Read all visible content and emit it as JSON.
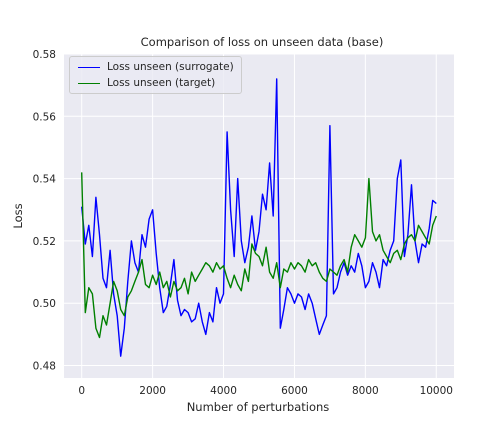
{
  "chart_data": {
    "type": "line",
    "title": "Comparison of loss on unseen data (base)",
    "xlabel": "Number of perturbations",
    "ylabel": "Loss",
    "xlim": [
      -500,
      10500
    ],
    "ylim": [
      0.476,
      0.58
    ],
    "xticks": [
      0,
      2000,
      4000,
      6000,
      8000,
      10000
    ],
    "yticks": [
      0.48,
      0.5,
      0.52,
      0.54,
      0.56,
      0.58
    ],
    "ytick_labels": [
      "0.48",
      "0.50",
      "0.52",
      "0.54",
      "0.56",
      "0.58"
    ],
    "grid": true,
    "legend_position": "upper-left",
    "colors": {
      "background": "#eaeaf2",
      "grid": "#ffffff"
    },
    "series": [
      {
        "name": "Loss unseen (surrogate)",
        "color": "#0000ff",
        "x": [
          0,
          100,
          200,
          300,
          400,
          500,
          600,
          700,
          800,
          900,
          1000,
          1100,
          1200,
          1300,
          1400,
          1500,
          1600,
          1700,
          1800,
          1900,
          2000,
          2100,
          2200,
          2300,
          2400,
          2500,
          2600,
          2700,
          2800,
          2900,
          3000,
          3100,
          3200,
          3300,
          3400,
          3500,
          3600,
          3700,
          3800,
          3900,
          4000,
          4100,
          4200,
          4300,
          4400,
          4500,
          4600,
          4700,
          4800,
          4900,
          5000,
          5100,
          5200,
          5300,
          5400,
          5500,
          5600,
          5700,
          5800,
          5900,
          6000,
          6100,
          6200,
          6300,
          6400,
          6500,
          6600,
          6700,
          6800,
          6900,
          7000,
          7100,
          7200,
          7300,
          7400,
          7500,
          7600,
          7700,
          7800,
          7900,
          8000,
          8100,
          8200,
          8300,
          8400,
          8500,
          8600,
          8700,
          8800,
          8900,
          9000,
          9100,
          9200,
          9300,
          9400,
          9500,
          9600,
          9700,
          9800,
          9900,
          10000
        ],
        "y": [
          0.531,
          0.519,
          0.525,
          0.515,
          0.534,
          0.522,
          0.508,
          0.505,
          0.517,
          0.503,
          0.496,
          0.483,
          0.492,
          0.507,
          0.52,
          0.513,
          0.51,
          0.522,
          0.518,
          0.527,
          0.53,
          0.516,
          0.505,
          0.497,
          0.499,
          0.506,
          0.514,
          0.501,
          0.496,
          0.498,
          0.497,
          0.494,
          0.495,
          0.5,
          0.494,
          0.49,
          0.497,
          0.494,
          0.505,
          0.5,
          0.503,
          0.555,
          0.53,
          0.515,
          0.54,
          0.52,
          0.513,
          0.518,
          0.528,
          0.517,
          0.523,
          0.535,
          0.53,
          0.545,
          0.528,
          0.572,
          0.492,
          0.498,
          0.505,
          0.503,
          0.5,
          0.503,
          0.502,
          0.498,
          0.503,
          0.5,
          0.495,
          0.49,
          0.493,
          0.496,
          0.557,
          0.503,
          0.505,
          0.51,
          0.513,
          0.509,
          0.512,
          0.51,
          0.516,
          0.512,
          0.505,
          0.507,
          0.513,
          0.51,
          0.505,
          0.514,
          0.512,
          0.517,
          0.52,
          0.54,
          0.546,
          0.515,
          0.522,
          0.538,
          0.52,
          0.513,
          0.519,
          0.518,
          0.524,
          0.533,
          0.532
        ]
      },
      {
        "name": "Loss unseen (target)",
        "color": "#008000",
        "x": [
          0,
          100,
          200,
          300,
          400,
          500,
          600,
          700,
          800,
          900,
          1000,
          1100,
          1200,
          1300,
          1400,
          1500,
          1600,
          1700,
          1800,
          1900,
          2000,
          2100,
          2200,
          2300,
          2400,
          2500,
          2600,
          2700,
          2800,
          2900,
          3000,
          3100,
          3200,
          3300,
          3400,
          3500,
          3600,
          3700,
          3800,
          3900,
          4000,
          4100,
          4200,
          4300,
          4400,
          4500,
          4600,
          4700,
          4800,
          4900,
          5000,
          5100,
          5200,
          5300,
          5400,
          5500,
          5600,
          5700,
          5800,
          5900,
          6000,
          6100,
          6200,
          6300,
          6400,
          6500,
          6600,
          6700,
          6800,
          6900,
          7000,
          7100,
          7200,
          7300,
          7400,
          7500,
          7600,
          7700,
          7800,
          7900,
          8000,
          8100,
          8200,
          8300,
          8400,
          8500,
          8600,
          8700,
          8800,
          8900,
          9000,
          9100,
          9200,
          9300,
          9400,
          9500,
          9600,
          9700,
          9800,
          9900,
          10000
        ],
        "y": [
          0.542,
          0.497,
          0.505,
          0.503,
          0.492,
          0.489,
          0.496,
          0.493,
          0.5,
          0.507,
          0.504,
          0.498,
          0.496,
          0.502,
          0.504,
          0.507,
          0.51,
          0.514,
          0.506,
          0.505,
          0.509,
          0.506,
          0.51,
          0.505,
          0.507,
          0.502,
          0.507,
          0.504,
          0.505,
          0.508,
          0.503,
          0.51,
          0.507,
          0.509,
          0.511,
          0.513,
          0.512,
          0.51,
          0.513,
          0.511,
          0.512,
          0.508,
          0.505,
          0.509,
          0.506,
          0.504,
          0.511,
          0.507,
          0.519,
          0.516,
          0.515,
          0.512,
          0.518,
          0.51,
          0.508,
          0.513,
          0.505,
          0.511,
          0.51,
          0.513,
          0.511,
          0.513,
          0.512,
          0.51,
          0.514,
          0.512,
          0.513,
          0.51,
          0.508,
          0.507,
          0.511,
          0.51,
          0.509,
          0.512,
          0.514,
          0.51,
          0.518,
          0.522,
          0.52,
          0.518,
          0.521,
          0.54,
          0.523,
          0.52,
          0.522,
          0.517,
          0.515,
          0.513,
          0.516,
          0.517,
          0.514,
          0.519,
          0.521,
          0.522,
          0.52,
          0.525,
          0.523,
          0.521,
          0.519,
          0.525,
          0.528
        ]
      }
    ]
  }
}
